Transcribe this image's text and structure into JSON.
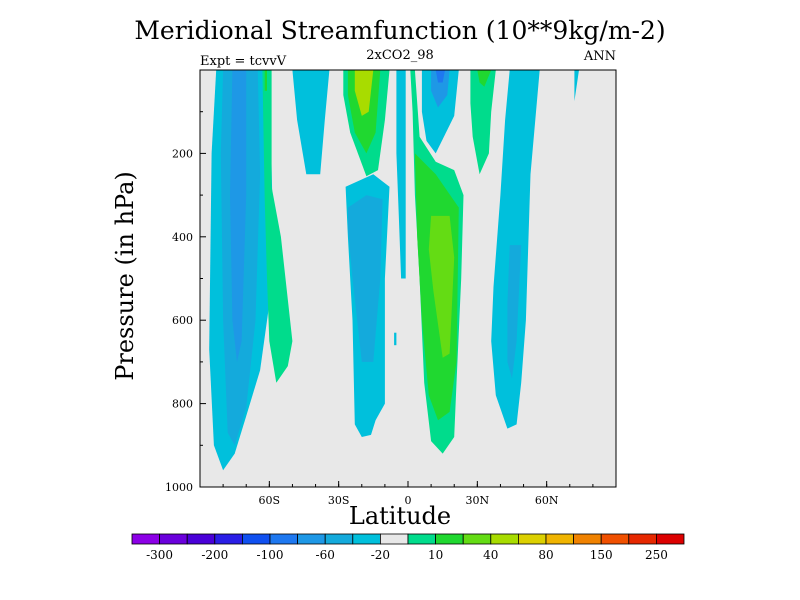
{
  "chart_data": {
    "type": "contour",
    "title": "Meridional Streamfunction (10**9kg/m-2)",
    "subtitle": "2xCO2_98",
    "left_label": "Expt = tcvvV",
    "right_label": "ANN",
    "xlabel": "Latitude",
    "ylabel": "Pressure (in hPa)",
    "x_ticks": [
      "60S",
      "30S",
      "0",
      "30N",
      "60N"
    ],
    "x_tick_values": [
      -60,
      -30,
      0,
      30,
      60
    ],
    "xlim": [
      -90,
      90
    ],
    "y_ticks": [
      "200",
      "400",
      "600",
      "800",
      "1000"
    ],
    "y_tick_values": [
      200,
      400,
      600,
      800,
      1000
    ],
    "ylim": [
      0,
      1000
    ],
    "y_inverted": true,
    "background_color": "#e8e8e8",
    "colorbar": {
      "colors": [
        "#8c00e6",
        "#6a00dc",
        "#4a00d8",
        "#2a1ee6",
        "#1050f0",
        "#1e78f0",
        "#1e98e6",
        "#14aadc",
        "#00c0dc",
        "#e8e8e8",
        "#00dc8c",
        "#20d830",
        "#64dc14",
        "#a8dc00",
        "#dcd000",
        "#f0b400",
        "#f08200",
        "#f05000",
        "#e62800",
        "#dc0000"
      ],
      "labels": [
        "-300",
        "-200",
        "-100",
        "-60",
        "-20",
        "10",
        "40",
        "80",
        "150",
        "250"
      ]
    },
    "regions": [
      {
        "color": "#00c0dc",
        "level": -10,
        "points": [
          [
            -83,
            0
          ],
          [
            -60,
            0
          ],
          [
            -58,
            480
          ],
          [
            -64,
            720
          ],
          [
            -70,
            830
          ],
          [
            -75,
            920
          ],
          [
            -80,
            960
          ],
          [
            -84,
            900
          ],
          [
            -86,
            670
          ],
          [
            -85,
            200
          ]
        ]
      },
      {
        "color": "#14aadc",
        "level": -20,
        "points": [
          [
            -80,
            0
          ],
          [
            -65,
            0
          ],
          [
            -64,
            250
          ],
          [
            -66,
            600
          ],
          [
            -70,
            810
          ],
          [
            -75,
            900
          ],
          [
            -78,
            870
          ],
          [
            -80,
            600
          ],
          [
            -81,
            200
          ]
        ]
      },
      {
        "color": "#1e98e6",
        "level": -40,
        "points": [
          [
            -76,
            0
          ],
          [
            -70,
            0
          ],
          [
            -70,
            300
          ],
          [
            -72,
            650
          ],
          [
            -74,
            700
          ],
          [
            -76,
            600
          ],
          [
            -77,
            300
          ]
        ]
      },
      {
        "color": "#00dc8c",
        "level": 10,
        "points": [
          [
            -63,
            0
          ],
          [
            -59,
            0
          ],
          [
            -59,
            280
          ],
          [
            -55,
            400
          ],
          [
            -50,
            650
          ],
          [
            -52,
            710
          ],
          [
            -57,
            750
          ],
          [
            -60,
            650
          ],
          [
            -61,
            500
          ],
          [
            -62,
            310
          ]
        ]
      },
      {
        "color": "#20d830",
        "level": 20,
        "points": [
          [
            -62,
            0
          ],
          [
            -61,
            0
          ],
          [
            -61,
            50
          ],
          [
            -62,
            50
          ]
        ]
      },
      {
        "color": "#00c0dc",
        "level": -10,
        "points": [
          [
            -50,
            0
          ],
          [
            -34,
            0
          ],
          [
            -36,
            120
          ],
          [
            -38,
            250
          ],
          [
            -44,
            250
          ],
          [
            -48,
            120
          ]
        ]
      },
      {
        "color": "#00dc8c",
        "level": 10,
        "points": [
          [
            -28,
            0
          ],
          [
            -8,
            0
          ],
          [
            -10,
            120
          ],
          [
            -13,
            240
          ],
          [
            -18,
            255
          ],
          [
            -25,
            150
          ],
          [
            -28,
            60
          ]
        ]
      },
      {
        "color": "#20d830",
        "level": 40,
        "points": [
          [
            -26,
            0
          ],
          [
            -12,
            0
          ],
          [
            -14,
            150
          ],
          [
            -18,
            200
          ],
          [
            -23,
            150
          ],
          [
            -26,
            60
          ]
        ]
      },
      {
        "color": "#a8dc00",
        "level": 80,
        "points": [
          [
            -23,
            0
          ],
          [
            -15,
            0
          ],
          [
            -17,
            100
          ],
          [
            -20,
            110
          ],
          [
            -23,
            50
          ]
        ]
      },
      {
        "color": "#00c0dc",
        "level": -10,
        "points": [
          [
            -27,
            280
          ],
          [
            -15,
            250
          ],
          [
            -8,
            280
          ],
          [
            -10,
            500
          ],
          [
            -10,
            800
          ],
          [
            -14,
            840
          ],
          [
            -16,
            875
          ],
          [
            -20,
            880
          ],
          [
            -23,
            850
          ],
          [
            -24,
            600
          ],
          [
            -26,
            400
          ]
        ]
      },
      {
        "color": "#14aadc",
        "level": -20,
        "points": [
          [
            -26,
            330
          ],
          [
            -18,
            300
          ],
          [
            -11,
            310
          ],
          [
            -12,
            500
          ],
          [
            -15,
            700
          ],
          [
            -20,
            700
          ],
          [
            -24,
            500
          ],
          [
            -26,
            380
          ]
        ]
      },
      {
        "color": "#00c0dc",
        "level": -10,
        "points": [
          [
            -5,
            0
          ],
          [
            -1,
            0
          ],
          [
            -1,
            500
          ],
          [
            -3,
            500
          ],
          [
            -4,
            350
          ],
          [
            -5,
            200
          ]
        ]
      },
      {
        "color": "#00c0dc",
        "level": -10,
        "points": [
          [
            -6,
            630
          ],
          [
            -5,
            630
          ],
          [
            -5,
            660
          ],
          [
            -6,
            660
          ]
        ]
      },
      {
        "color": "#00dc8c",
        "level": 10,
        "points": [
          [
            1,
            0
          ],
          [
            3,
            0
          ],
          [
            5,
            160
          ],
          [
            12,
            220
          ],
          [
            20,
            240
          ],
          [
            24,
            300
          ],
          [
            23,
            500
          ],
          [
            21,
            750
          ],
          [
            20,
            880
          ],
          [
            15,
            920
          ],
          [
            10,
            890
          ],
          [
            7,
            750
          ],
          [
            5,
            500
          ],
          [
            3,
            300
          ],
          [
            2,
            100
          ]
        ]
      },
      {
        "color": "#20d830",
        "level": 20,
        "points": [
          [
            3,
            200
          ],
          [
            12,
            250
          ],
          [
            22,
            330
          ],
          [
            21,
            700
          ],
          [
            18,
            820
          ],
          [
            13,
            840
          ],
          [
            9,
            780
          ],
          [
            6,
            600
          ],
          [
            4,
            400
          ]
        ]
      },
      {
        "color": "#64dc14",
        "level": 40,
        "points": [
          [
            10,
            350
          ],
          [
            18,
            350
          ],
          [
            20,
            450
          ],
          [
            18,
            680
          ],
          [
            15,
            690
          ],
          [
            11,
            530
          ],
          [
            9,
            430
          ]
        ]
      },
      {
        "color": "#00c0dc",
        "level": -10,
        "points": [
          [
            6,
            0
          ],
          [
            22,
            0
          ],
          [
            20,
            110
          ],
          [
            12,
            200
          ],
          [
            8,
            170
          ],
          [
            6,
            100
          ]
        ]
      },
      {
        "color": "#1e98e6",
        "level": -40,
        "points": [
          [
            10,
            0
          ],
          [
            18,
            0
          ],
          [
            17,
            60
          ],
          [
            13,
            90
          ],
          [
            10,
            50
          ]
        ]
      },
      {
        "color": "#1e78f0",
        "level": -60,
        "points": [
          [
            12,
            0
          ],
          [
            16,
            0
          ],
          [
            15,
            30
          ],
          [
            13,
            30
          ]
        ]
      },
      {
        "color": "#00dc8c",
        "level": 10,
        "points": [
          [
            27,
            0
          ],
          [
            38,
            0
          ],
          [
            36,
            100
          ],
          [
            35,
            200
          ],
          [
            31,
            250
          ],
          [
            28,
            160
          ],
          [
            27,
            80
          ]
        ]
      },
      {
        "color": "#20d830",
        "level": 20,
        "points": [
          [
            30,
            0
          ],
          [
            36,
            0
          ],
          [
            33,
            40
          ],
          [
            31,
            30
          ]
        ]
      },
      {
        "color": "#00c0dc",
        "level": -10,
        "points": [
          [
            44,
            0
          ],
          [
            57,
            0
          ],
          [
            53,
            250
          ],
          [
            51,
            600
          ],
          [
            49,
            750
          ],
          [
            47,
            850
          ],
          [
            43,
            860
          ],
          [
            38,
            780
          ],
          [
            36,
            650
          ],
          [
            37,
            520
          ],
          [
            40,
            300
          ],
          [
            42,
            120
          ]
        ]
      },
      {
        "color": "#14aadc",
        "level": -20,
        "points": [
          [
            44,
            420
          ],
          [
            49,
            420
          ],
          [
            47,
            650
          ],
          [
            45,
            740
          ],
          [
            43,
            700
          ],
          [
            43,
            560
          ]
        ]
      },
      {
        "color": "#00c0dc",
        "level": -10,
        "points": [
          [
            72,
            0
          ],
          [
            74,
            0
          ],
          [
            72,
            75
          ]
        ]
      }
    ]
  }
}
